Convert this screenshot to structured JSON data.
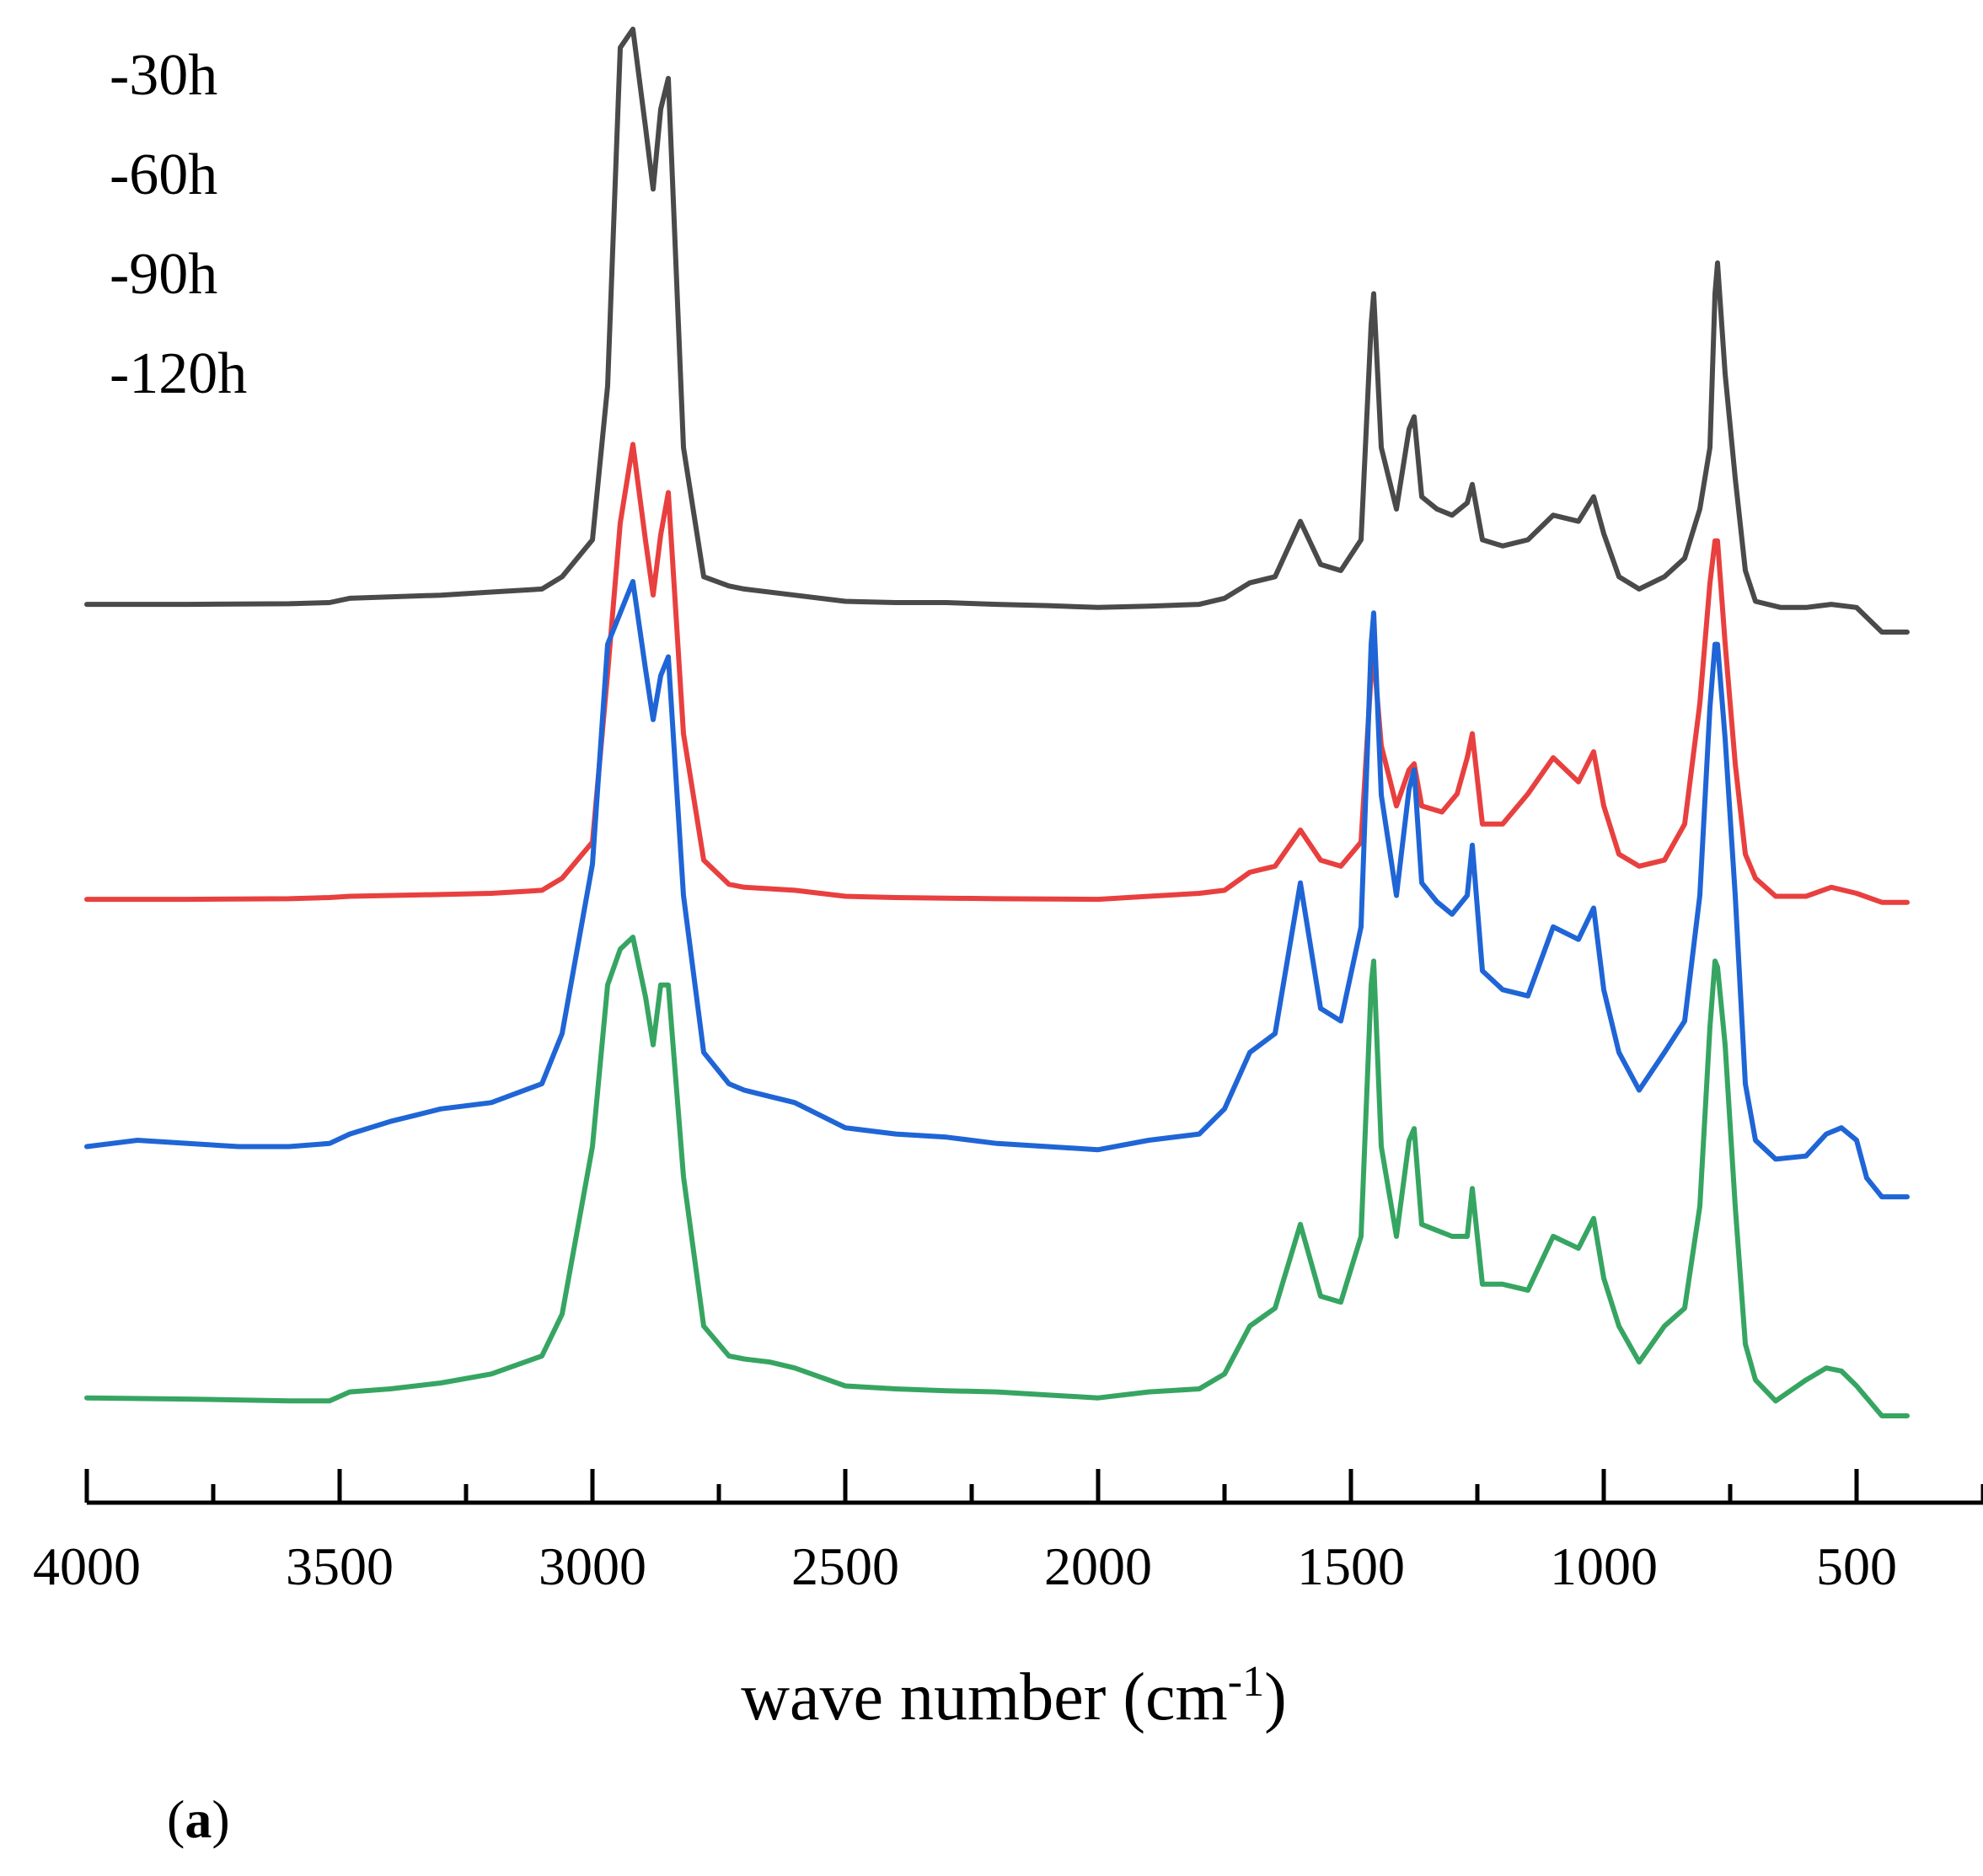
{
  "chart_data": {
    "type": "line",
    "title": "",
    "xlabel_main": "wave number (cm",
    "xlabel_sup": "-1",
    "xlabel_close": ")",
    "ylabel": "",
    "xlim": [
      4000,
      250
    ],
    "x_reversed": true,
    "y_axis_visible": false,
    "grid": false,
    "xticks": [
      4000,
      3500,
      3000,
      2500,
      2000,
      1500,
      1000,
      500
    ],
    "xtick_labels": [
      "4000",
      "3500",
      "3000",
      "2500",
      "2000",
      "1500",
      "1000",
      "500"
    ],
    "minor_tick_step": 250,
    "legend_position": "top-left",
    "panel_label_open": "(",
    "panel_label": "a",
    "panel_label_close": ")",
    "ylim": [
      0,
      1
    ],
    "series": [
      {
        "name": "-30h",
        "color": "#4a4a4a",
        "points": [
          [
            4000,
            0.045
          ],
          [
            3800,
            0.045
          ],
          [
            3600,
            0.046
          ],
          [
            3520,
            0.048
          ],
          [
            3480,
            0.055
          ],
          [
            3300,
            0.06
          ],
          [
            3200,
            0.065
          ],
          [
            3100,
            0.07
          ],
          [
            3060,
            0.09
          ],
          [
            3000,
            0.15
          ],
          [
            2970,
            0.4
          ],
          [
            2945,
            0.95
          ],
          [
            2920,
            0.98
          ],
          [
            2895,
            0.82
          ],
          [
            2880,
            0.72
          ],
          [
            2865,
            0.85
          ],
          [
            2850,
            0.9
          ],
          [
            2820,
            0.3
          ],
          [
            2780,
            0.09
          ],
          [
            2730,
            0.075
          ],
          [
            2700,
            0.07
          ],
          [
            2600,
            0.06
          ],
          [
            2500,
            0.05
          ],
          [
            2400,
            0.048
          ],
          [
            2300,
            0.048
          ],
          [
            2200,
            0.045
          ],
          [
            2100,
            0.043
          ],
          [
            2000,
            0.04
          ],
          [
            1900,
            0.042
          ],
          [
            1800,
            0.045
          ],
          [
            1750,
            0.055
          ],
          [
            1700,
            0.08
          ],
          [
            1650,
            0.09
          ],
          [
            1600,
            0.18
          ],
          [
            1560,
            0.11
          ],
          [
            1520,
            0.1
          ],
          [
            1480,
            0.15
          ],
          [
            1460,
            0.5
          ],
          [
            1455,
            0.55
          ],
          [
            1440,
            0.3
          ],
          [
            1410,
            0.2
          ],
          [
            1385,
            0.33
          ],
          [
            1375,
            0.35
          ],
          [
            1360,
            0.22
          ],
          [
            1330,
            0.2
          ],
          [
            1300,
            0.19
          ],
          [
            1270,
            0.21
          ],
          [
            1260,
            0.24
          ],
          [
            1240,
            0.15
          ],
          [
            1200,
            0.14
          ],
          [
            1150,
            0.15
          ],
          [
            1100,
            0.19
          ],
          [
            1050,
            0.18
          ],
          [
            1020,
            0.22
          ],
          [
            1000,
            0.16
          ],
          [
            970,
            0.09
          ],
          [
            930,
            0.07
          ],
          [
            880,
            0.09
          ],
          [
            840,
            0.12
          ],
          [
            810,
            0.2
          ],
          [
            790,
            0.3
          ],
          [
            780,
            0.55
          ],
          [
            775,
            0.6
          ],
          [
            760,
            0.42
          ],
          [
            740,
            0.25
          ],
          [
            720,
            0.1
          ],
          [
            700,
            0.05
          ],
          [
            650,
            0.04
          ],
          [
            600,
            0.04
          ],
          [
            550,
            0.045
          ],
          [
            500,
            0.04
          ],
          [
            450,
            0.0
          ],
          [
            400,
            0.0
          ]
        ]
      },
      {
        "name": "-60h",
        "color": "#e8403f",
        "points": [
          [
            4000,
            0.025
          ],
          [
            3800,
            0.025
          ],
          [
            3600,
            0.026
          ],
          [
            3520,
            0.028
          ],
          [
            3480,
            0.03
          ],
          [
            3300,
            0.033
          ],
          [
            3200,
            0.035
          ],
          [
            3100,
            0.04
          ],
          [
            3060,
            0.06
          ],
          [
            3000,
            0.12
          ],
          [
            2970,
            0.4
          ],
          [
            2945,
            0.65
          ],
          [
            2920,
            0.78
          ],
          [
            2895,
            0.62
          ],
          [
            2880,
            0.53
          ],
          [
            2865,
            0.63
          ],
          [
            2850,
            0.7
          ],
          [
            2820,
            0.3
          ],
          [
            2780,
            0.09
          ],
          [
            2730,
            0.05
          ],
          [
            2700,
            0.045
          ],
          [
            2600,
            0.04
          ],
          [
            2500,
            0.03
          ],
          [
            2400,
            0.028
          ],
          [
            2200,
            0.026
          ],
          [
            2000,
            0.025
          ],
          [
            1900,
            0.03
          ],
          [
            1800,
            0.035
          ],
          [
            1750,
            0.04
          ],
          [
            1700,
            0.07
          ],
          [
            1650,
            0.08
          ],
          [
            1600,
            0.14
          ],
          [
            1560,
            0.09
          ],
          [
            1520,
            0.08
          ],
          [
            1480,
            0.12
          ],
          [
            1460,
            0.4
          ],
          [
            1455,
            0.43
          ],
          [
            1440,
            0.28
          ],
          [
            1410,
            0.18
          ],
          [
            1385,
            0.24
          ],
          [
            1375,
            0.25
          ],
          [
            1360,
            0.18
          ],
          [
            1320,
            0.17
          ],
          [
            1290,
            0.2
          ],
          [
            1270,
            0.26
          ],
          [
            1260,
            0.3
          ],
          [
            1240,
            0.15
          ],
          [
            1200,
            0.15
          ],
          [
            1150,
            0.2
          ],
          [
            1100,
            0.26
          ],
          [
            1050,
            0.22
          ],
          [
            1020,
            0.27
          ],
          [
            1000,
            0.18
          ],
          [
            970,
            0.1
          ],
          [
            930,
            0.08
          ],
          [
            880,
            0.09
          ],
          [
            840,
            0.15
          ],
          [
            810,
            0.35
          ],
          [
            790,
            0.55
          ],
          [
            780,
            0.62
          ],
          [
            775,
            0.62
          ],
          [
            760,
            0.45
          ],
          [
            740,
            0.25
          ],
          [
            720,
            0.1
          ],
          [
            700,
            0.06
          ],
          [
            660,
            0.03
          ],
          [
            600,
            0.03
          ],
          [
            550,
            0.045
          ],
          [
            500,
            0.035
          ],
          [
            450,
            0.02
          ],
          [
            400,
            0.02
          ]
        ]
      },
      {
        "name": "-90h",
        "color": "#1f65d6",
        "points": [
          [
            4000,
            0.1
          ],
          [
            3900,
            0.11
          ],
          [
            3800,
            0.105
          ],
          [
            3700,
            0.1
          ],
          [
            3600,
            0.1
          ],
          [
            3520,
            0.105
          ],
          [
            3480,
            0.12
          ],
          [
            3400,
            0.14
          ],
          [
            3350,
            0.15
          ],
          [
            3300,
            0.16
          ],
          [
            3200,
            0.17
          ],
          [
            3100,
            0.2
          ],
          [
            3060,
            0.28
          ],
          [
            3000,
            0.55
          ],
          [
            2970,
            0.9
          ],
          [
            2945,
            0.95
          ],
          [
            2920,
            1.0
          ],
          [
            2895,
            0.86
          ],
          [
            2880,
            0.78
          ],
          [
            2865,
            0.85
          ],
          [
            2850,
            0.88
          ],
          [
            2820,
            0.5
          ],
          [
            2780,
            0.25
          ],
          [
            2730,
            0.2
          ],
          [
            2700,
            0.19
          ],
          [
            2650,
            0.18
          ],
          [
            2600,
            0.17
          ],
          [
            2500,
            0.13
          ],
          [
            2400,
            0.12
          ],
          [
            2300,
            0.115
          ],
          [
            2200,
            0.105
          ],
          [
            2100,
            0.1
          ],
          [
            2000,
            0.095
          ],
          [
            1900,
            0.11
          ],
          [
            1800,
            0.12
          ],
          [
            1750,
            0.16
          ],
          [
            1700,
            0.25
          ],
          [
            1650,
            0.28
          ],
          [
            1600,
            0.52
          ],
          [
            1560,
            0.32
          ],
          [
            1520,
            0.3
          ],
          [
            1480,
            0.45
          ],
          [
            1460,
            0.9
          ],
          [
            1455,
            0.95
          ],
          [
            1440,
            0.66
          ],
          [
            1410,
            0.5
          ],
          [
            1385,
            0.67
          ],
          [
            1375,
            0.7
          ],
          [
            1360,
            0.52
          ],
          [
            1330,
            0.49
          ],
          [
            1300,
            0.47
          ],
          [
            1270,
            0.5
          ],
          [
            1260,
            0.58
          ],
          [
            1240,
            0.38
          ],
          [
            1200,
            0.35
          ],
          [
            1150,
            0.34
          ],
          [
            1100,
            0.45
          ],
          [
            1050,
            0.43
          ],
          [
            1020,
            0.48
          ],
          [
            1000,
            0.35
          ],
          [
            970,
            0.25
          ],
          [
            930,
            0.19
          ],
          [
            880,
            0.25
          ],
          [
            840,
            0.3
          ],
          [
            810,
            0.5
          ],
          [
            790,
            0.8
          ],
          [
            780,
            0.9
          ],
          [
            775,
            0.9
          ],
          [
            760,
            0.75
          ],
          [
            740,
            0.5
          ],
          [
            720,
            0.2
          ],
          [
            700,
            0.11
          ],
          [
            660,
            0.08
          ],
          [
            600,
            0.085
          ],
          [
            560,
            0.12
          ],
          [
            530,
            0.13
          ],
          [
            500,
            0.11
          ],
          [
            480,
            0.05
          ],
          [
            450,
            0.02
          ],
          [
            400,
            0.02
          ]
        ]
      },
      {
        "name": "-120h",
        "color": "#36a562",
        "points": [
          [
            4000,
            0.03
          ],
          [
            3800,
            0.028
          ],
          [
            3600,
            0.025
          ],
          [
            3520,
            0.025
          ],
          [
            3480,
            0.04
          ],
          [
            3400,
            0.045
          ],
          [
            3300,
            0.055
          ],
          [
            3200,
            0.07
          ],
          [
            3100,
            0.1
          ],
          [
            3060,
            0.17
          ],
          [
            3000,
            0.45
          ],
          [
            2970,
            0.72
          ],
          [
            2945,
            0.78
          ],
          [
            2920,
            0.8
          ],
          [
            2895,
            0.7
          ],
          [
            2880,
            0.62
          ],
          [
            2865,
            0.72
          ],
          [
            2850,
            0.72
          ],
          [
            2820,
            0.4
          ],
          [
            2780,
            0.15
          ],
          [
            2730,
            0.1
          ],
          [
            2700,
            0.095
          ],
          [
            2650,
            0.09
          ],
          [
            2600,
            0.08
          ],
          [
            2500,
            0.05
          ],
          [
            2400,
            0.045
          ],
          [
            2300,
            0.042
          ],
          [
            2200,
            0.04
          ],
          [
            2100,
            0.035
          ],
          [
            2000,
            0.03
          ],
          [
            1900,
            0.04
          ],
          [
            1800,
            0.045
          ],
          [
            1750,
            0.07
          ],
          [
            1700,
            0.15
          ],
          [
            1650,
            0.18
          ],
          [
            1600,
            0.32
          ],
          [
            1560,
            0.2
          ],
          [
            1520,
            0.19
          ],
          [
            1480,
            0.3
          ],
          [
            1460,
            0.72
          ],
          [
            1455,
            0.76
          ],
          [
            1440,
            0.45
          ],
          [
            1410,
            0.3
          ],
          [
            1385,
            0.46
          ],
          [
            1375,
            0.48
          ],
          [
            1360,
            0.32
          ],
          [
            1330,
            0.31
          ],
          [
            1300,
            0.3
          ],
          [
            1270,
            0.3
          ],
          [
            1260,
            0.38
          ],
          [
            1240,
            0.22
          ],
          [
            1200,
            0.22
          ],
          [
            1150,
            0.21
          ],
          [
            1100,
            0.3
          ],
          [
            1050,
            0.28
          ],
          [
            1020,
            0.33
          ],
          [
            1000,
            0.23
          ],
          [
            970,
            0.15
          ],
          [
            930,
            0.09
          ],
          [
            880,
            0.15
          ],
          [
            840,
            0.18
          ],
          [
            810,
            0.35
          ],
          [
            790,
            0.65
          ],
          [
            780,
            0.76
          ],
          [
            775,
            0.75
          ],
          [
            760,
            0.62
          ],
          [
            740,
            0.35
          ],
          [
            720,
            0.12
          ],
          [
            700,
            0.06
          ],
          [
            660,
            0.025
          ],
          [
            600,
            0.06
          ],
          [
            560,
            0.08
          ],
          [
            530,
            0.075
          ],
          [
            500,
            0.05
          ],
          [
            450,
            0.0
          ],
          [
            400,
            0.0
          ]
        ]
      }
    ]
  }
}
